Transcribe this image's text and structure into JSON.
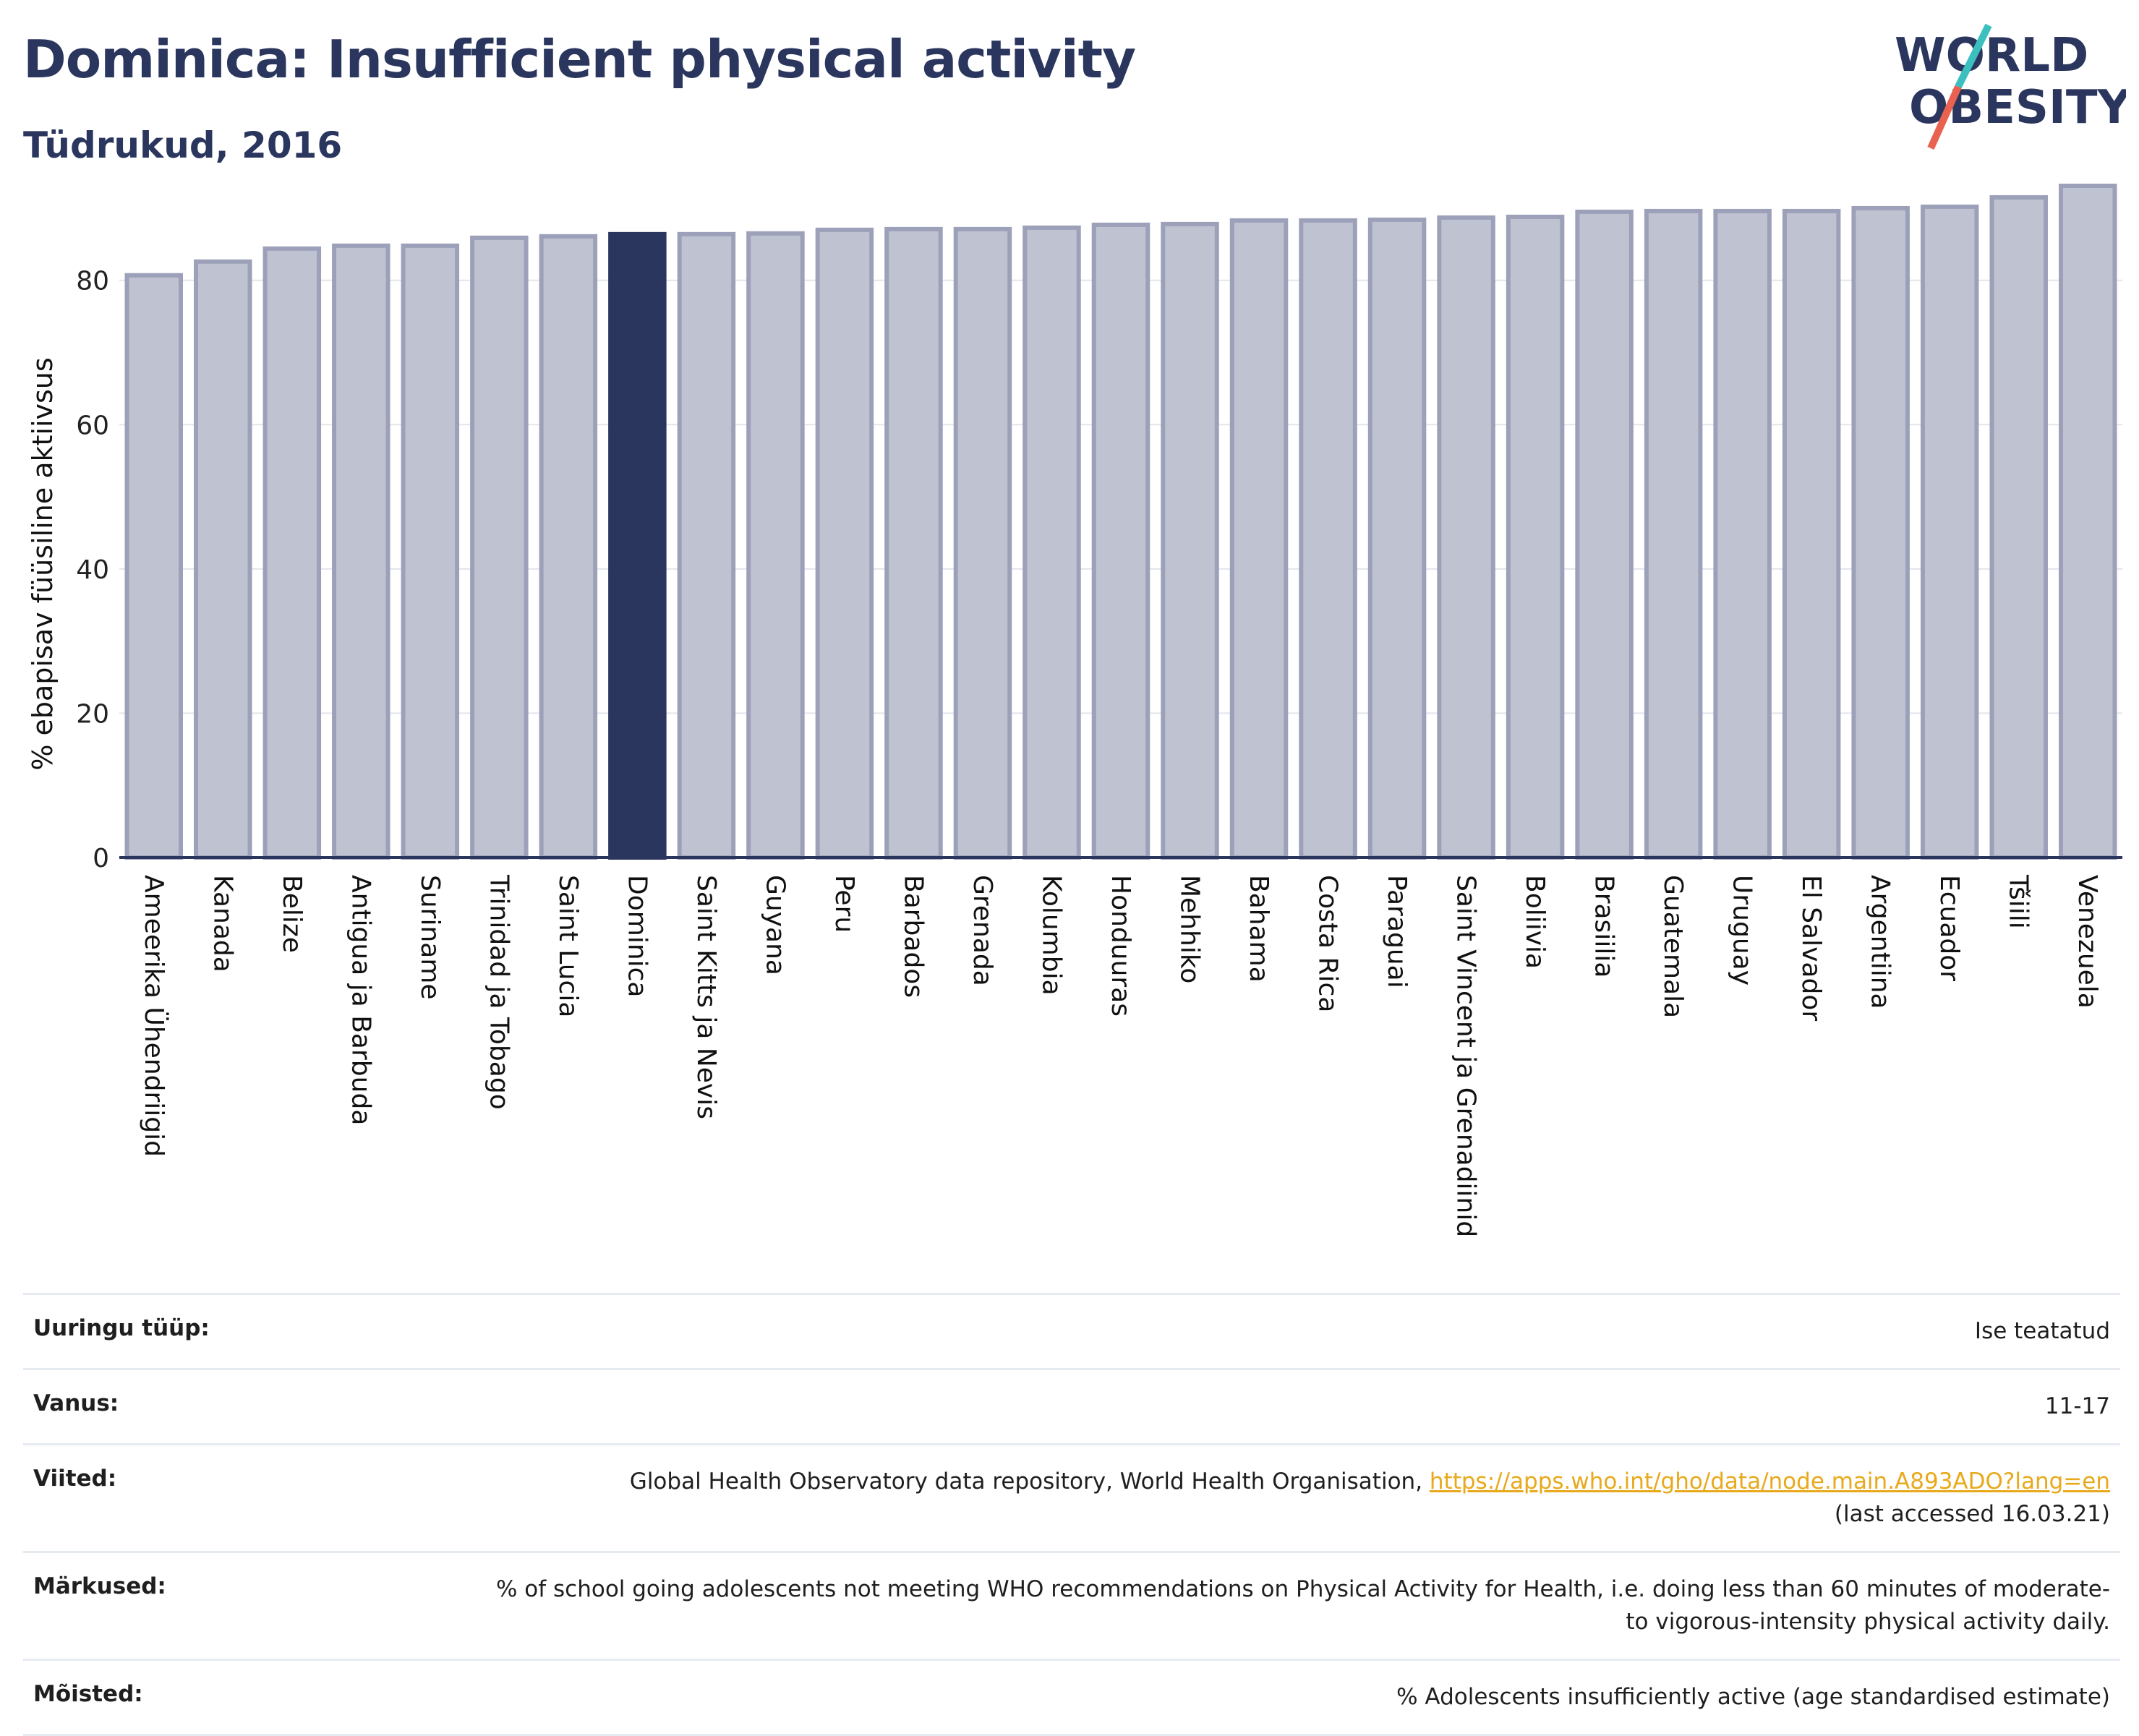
{
  "header": {
    "title": "Dominica: Insufficient physical activity",
    "subtitle": "Tüdrukud, 2016"
  },
  "logo": {
    "line1": "WORLD",
    "line2": "OBESITY"
  },
  "colors": {
    "bar": "#bfc2d0",
    "bar_stroke": "#9ca1b9",
    "highlight": "#2b365f",
    "title": "#2b365f"
  },
  "chart_data": {
    "type": "bar",
    "ylabel": "% ebapisav füüsiline aktiivsus",
    "ylim": [
      0,
      93
    ],
    "yticks": [
      0,
      20,
      40,
      60,
      80
    ],
    "grid": true,
    "highlight": "Dominica",
    "categories": [
      "Ameerika Ühendriigid",
      "Kanada",
      "Belize",
      "Antigua ja Barbuda",
      "Suriname",
      "Trinidad ja Tobago",
      "Saint Lucia",
      "Dominica",
      "Saint Kitts ja Nevis",
      "Guyana",
      "Peru",
      "Barbados",
      "Grenada",
      "Kolumbia",
      "Honduuras",
      "Mehhiko",
      "Bahama",
      "Costa Rica",
      "Paraguai",
      "Saint Vincent ja Grenadiinid",
      "Boliivia",
      "Brasiilia",
      "Guatemala",
      "Uruguay",
      "El Salvador",
      "Argentiina",
      "Ecuador",
      "Tšiili",
      "Venezuela"
    ],
    "values": [
      80.7,
      82.6,
      84.4,
      84.8,
      84.8,
      85.9,
      86.1,
      86.4,
      86.4,
      86.5,
      87.0,
      87.1,
      87.1,
      87.3,
      87.7,
      87.8,
      88.3,
      88.3,
      88.4,
      88.7,
      88.8,
      89.5,
      89.6,
      89.6,
      89.6,
      90.0,
      90.2,
      91.5,
      93.1
    ]
  },
  "info": [
    {
      "key": "Uuringu tüüp:",
      "value": "Ise teatatud"
    },
    {
      "key": "Vanus:",
      "value": "11-17"
    },
    {
      "key": "Viited:",
      "value": "Global Health Observatory data repository, World Health Organisation, ",
      "link": "https://apps.who.int/gho/data/node.main.A893ADO?lang=en",
      "value2": "(last accessed 16.03.21)"
    },
    {
      "key": "Märkused:",
      "value": "% of school going adolescents not meeting WHO recommendations on Physical Activity for Health, i.e. doing less than 60 minutes of moderate- to vigorous-intensity physical activity daily."
    },
    {
      "key": "Mõisted:",
      "value": "% Adolescents insufficiently active (age standardised estimate)"
    }
  ]
}
